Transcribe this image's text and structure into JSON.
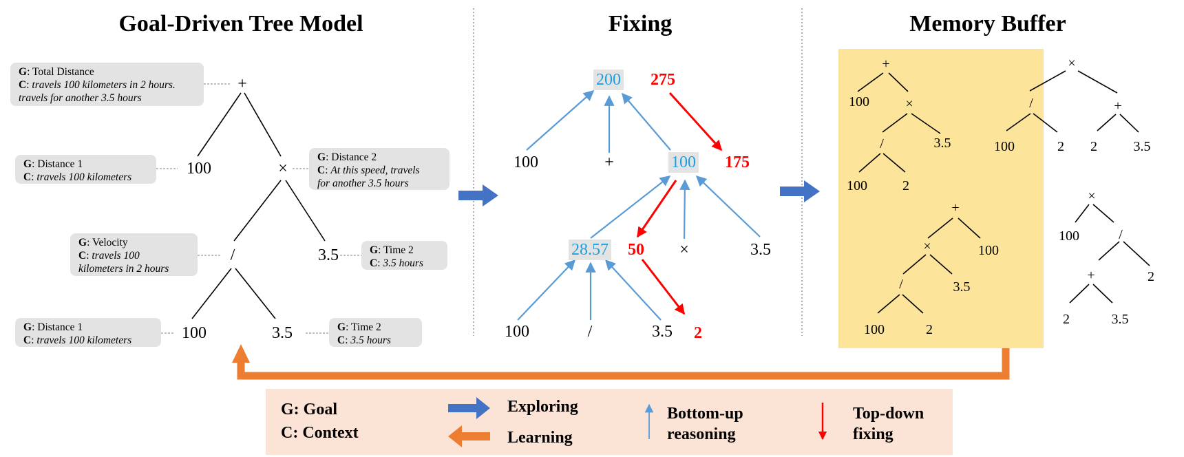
{
  "titles": {
    "tree_model": "Goal-Driven Tree Model",
    "fixing": "Fixing",
    "memory": "Memory Buffer"
  },
  "tree_model": {
    "nodes": {
      "root": "+",
      "n100_top": "100",
      "times": "×",
      "div": "/",
      "n35_mid": "3.5",
      "n100_bot": "100",
      "n35_bot": "3.5"
    },
    "boxes": {
      "total": {
        "g_label": "G",
        "g_text": "Total Distance",
        "c_label": "C",
        "c_line1": "travels 100 kilometers in 2 hours.",
        "c_line2": "travels for another 3.5 hours"
      },
      "distance1_top": {
        "g_label": "G",
        "g_text": "Distance 1",
        "c_label": "C",
        "c_line1": "travels 100 kilometers"
      },
      "distance2": {
        "g_label": "G",
        "g_text": "Distance 2",
        "c_label": "C",
        "c_line1": "At this speed, travels",
        "c_line2": "for another 3.5 hours"
      },
      "velocity": {
        "g_label": "G",
        "g_text": "Velocity",
        "c_label": "C",
        "c_line1": "travels 100",
        "c_line2": "kilometers in 2 hours"
      },
      "time2_mid": {
        "g_label": "G",
        "g_text": "Time 2",
        "c_label": "C",
        "c_line1": "3.5 hours"
      },
      "distance1_bot": {
        "g_label": "G",
        "g_text": "Distance 1",
        "c_label": "C",
        "c_line1": "travels 100 kilometers"
      },
      "time2_bot": {
        "g_label": "G",
        "g_text": "Time 2",
        "c_label": "C",
        "c_line1": "3.5 hours"
      }
    }
  },
  "fixing": {
    "nodes": {
      "v200": "200",
      "v275": "275",
      "n100_l": "100",
      "plus": "+",
      "v100": "100",
      "v175": "175",
      "v2857": "28.57",
      "v50": "50",
      "times": "×",
      "n35_r": "3.5",
      "n100_b": "100",
      "div": "/",
      "n35_b": "3.5",
      "v2": "2"
    }
  },
  "memory": {
    "t1": {
      "plus": "+",
      "n100": "100",
      "times": "×",
      "div": "/",
      "n35": "3.5",
      "n100b": "100",
      "n2": "2"
    },
    "t2": {
      "times": "×",
      "div": "/",
      "plus": "+",
      "n100": "100",
      "n2a": "2",
      "n2b": "2",
      "n35": "3.5"
    },
    "t3": {
      "plus": "+",
      "times": "×",
      "n100": "100",
      "div": "/",
      "n35": "3.5",
      "n100b": "100",
      "n2": "2"
    },
    "t4": {
      "times": "×",
      "n100": "100",
      "div": "/",
      "plus": "+",
      "n2a": "2",
      "n2b": "2",
      "n35": "3.5"
    }
  },
  "legend": {
    "goal_key": "G",
    "goal_text": ": Goal",
    "context_key": "C",
    "context_text": ": Context",
    "exploring": "Exploring",
    "learning": "Learning",
    "bottom_up_1": "Bottom-up",
    "bottom_up_2": "reasoning",
    "top_down_1": "Top-down",
    "top_down_2": "fixing"
  },
  "colors": {
    "blue_arrow": "#4472c4",
    "orange_arrow": "#ed7d31",
    "light_blue": "#5b9bd5",
    "value_blue": "#1a9fe0",
    "red": "#ff0000",
    "memory_bg": "#fde49b",
    "legend_bg": "#fbe4d6",
    "box_gray": "#e3e3e3"
  }
}
